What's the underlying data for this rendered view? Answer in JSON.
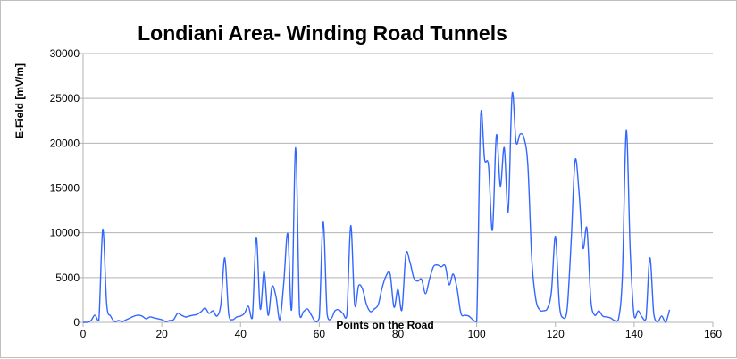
{
  "chart_data": {
    "type": "line",
    "title": "Londiani Area- Winding Road Tunnels",
    "xlabel": "Points on the Road",
    "ylabel": "E-Field [mV/m]",
    "xlim": [
      0,
      160
    ],
    "ylim": [
      0,
      30000
    ],
    "x_ticks": [
      "0",
      "20",
      "40",
      "60",
      "80",
      "100",
      "120",
      "140",
      "160"
    ],
    "y_ticks": [
      "0",
      "5000",
      "10000",
      "15000",
      "20000",
      "25000",
      "30000"
    ],
    "grid": "horizontal",
    "legend": "none",
    "series": [
      {
        "color": "#3366ff",
        "x": [
          0,
          1,
          2,
          3,
          4,
          5,
          6,
          7,
          8,
          9,
          10,
          11,
          12,
          13,
          14,
          15,
          16,
          17,
          18,
          19,
          20,
          21,
          22,
          23,
          24,
          25,
          26,
          27,
          28,
          29,
          30,
          31,
          32,
          33,
          34,
          35,
          36,
          37,
          38,
          39,
          40,
          41,
          42,
          43,
          44,
          45,
          46,
          47,
          48,
          49,
          50,
          51,
          52,
          53,
          54,
          55,
          56,
          57,
          58,
          59,
          60,
          61,
          62,
          63,
          64,
          65,
          66,
          67,
          68,
          69,
          70,
          71,
          72,
          73,
          74,
          75,
          76,
          77,
          78,
          79,
          80,
          81,
          82,
          83,
          84,
          85,
          86,
          87,
          88,
          89,
          90,
          91,
          92,
          93,
          94,
          95,
          96,
          97,
          98,
          99,
          100,
          101,
          102,
          103,
          104,
          105,
          106,
          107,
          108,
          109,
          110,
          111,
          112,
          113,
          114,
          115,
          116,
          117,
          118,
          119,
          120,
          121,
          122,
          123,
          124,
          125,
          126,
          127,
          128,
          129,
          130,
          131,
          132,
          133,
          134,
          135,
          136,
          137,
          138,
          139,
          140,
          141,
          142,
          143,
          144,
          145,
          146,
          147,
          148,
          149
        ],
        "values": [
          0,
          0,
          200,
          800,
          200,
          10400,
          2000,
          700,
          100,
          200,
          100,
          300,
          500,
          700,
          800,
          700,
          400,
          600,
          500,
          400,
          300,
          100,
          200,
          300,
          1000,
          800,
          600,
          700,
          800,
          900,
          1200,
          1600,
          1000,
          1300,
          700,
          2000,
          7200,
          900,
          300,
          600,
          700,
          1000,
          1800,
          500,
          9500,
          1500,
          5700,
          800,
          4000,
          2900,
          300,
          4500,
          9900,
          1500,
          19500,
          900,
          1200,
          1500,
          800,
          100,
          500,
          11200,
          900,
          400,
          1300,
          1400,
          1000,
          800,
          10800,
          2000,
          4100,
          3700,
          2000,
          1200,
          1500,
          2000,
          3900,
          5200,
          5400,
          1700,
          3700,
          1400,
          7600,
          6800,
          5000,
          4600,
          4800,
          3200,
          4800,
          6200,
          6400,
          6200,
          6300,
          4200,
          5400,
          3800,
          1000,
          800,
          700,
          300,
          100,
          22900,
          18200,
          17500,
          10300,
          20900,
          15200,
          19500,
          12400,
          25500,
          20100,
          21000,
          20600,
          17500,
          7000,
          2600,
          1400,
          1300,
          1600,
          3500,
          9600,
          2000,
          500,
          1600,
          9100,
          18100,
          14500,
          8300,
          10500,
          2500,
          800,
          1300,
          700,
          600,
          500,
          200,
          300,
          5100,
          21400,
          8000,
          700,
          1300,
          600,
          400,
          7200,
          900,
          100,
          700,
          0,
          1400
        ]
      }
    ]
  }
}
